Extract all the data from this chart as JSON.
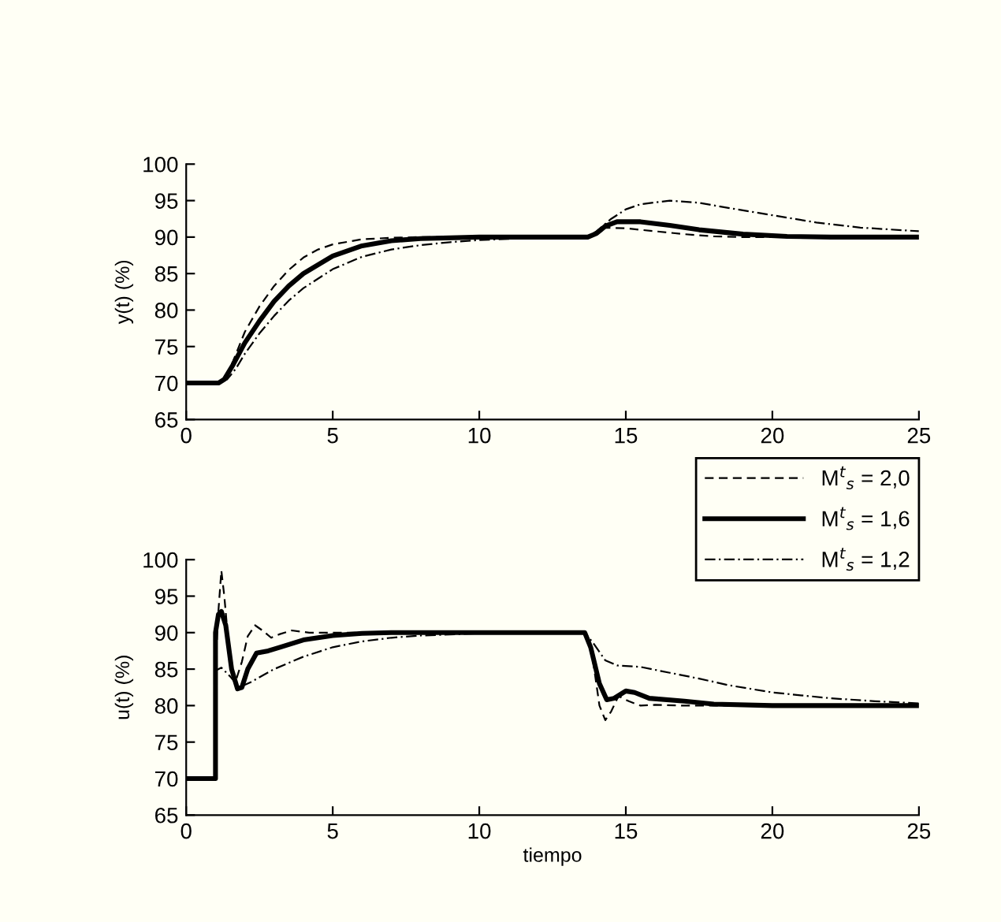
{
  "chart_data": [
    {
      "type": "line",
      "ylabel": "y(t) (%)",
      "xlim": [
        0,
        25
      ],
      "ylim": [
        65,
        100
      ],
      "xticks": [
        0,
        5,
        10,
        15,
        20,
        25
      ],
      "yticks": [
        65,
        70,
        75,
        80,
        85,
        90,
        95,
        100
      ],
      "grid": false,
      "legend": false,
      "series": [
        {
          "color": "#000000",
          "line_style": "dashed",
          "x": [
            0,
            1.1,
            1.3,
            1.6,
            2,
            2.5,
            3,
            3.5,
            4,
            4.5,
            5,
            6,
            7,
            8,
            13.7,
            14,
            14.3,
            15,
            16,
            17,
            18,
            19,
            25
          ],
          "values": [
            70,
            70,
            70.5,
            73,
            77,
            80.5,
            83.3,
            85.5,
            87.2,
            88.3,
            89,
            89.7,
            89.9,
            90,
            90,
            90.6,
            91.3,
            91.2,
            90.8,
            90.4,
            90.1,
            90,
            90
          ]
        },
        {
          "color": "#000000",
          "line_style": "solid",
          "x": [
            0,
            1.1,
            1.3,
            1.6,
            2,
            2.5,
            3,
            3.5,
            4,
            5,
            6,
            7,
            8,
            10,
            13.7,
            14,
            14.3,
            14.7,
            15.5,
            16.5,
            17.5,
            19,
            20.5,
            22,
            25
          ],
          "values": [
            70,
            70,
            70.5,
            72.5,
            75.5,
            78.5,
            81.2,
            83.3,
            85,
            87.4,
            88.8,
            89.5,
            89.8,
            90,
            90,
            90.5,
            91.5,
            92.1,
            92.1,
            91.6,
            91,
            90.4,
            90.1,
            90,
            90
          ]
        },
        {
          "color": "#000000",
          "line_style": "dashdot",
          "x": [
            0,
            1.1,
            1.4,
            1.7,
            2,
            2.5,
            3,
            3.5,
            4,
            5,
            6,
            7,
            8,
            9,
            10,
            12,
            13.7,
            14,
            14.5,
            15,
            15.5,
            16.5,
            17.5,
            18.5,
            20,
            21.5,
            23,
            25
          ],
          "values": [
            70,
            70,
            70.5,
            72,
            74,
            76.8,
            79.2,
            81.3,
            83,
            85.6,
            87.3,
            88.3,
            88.9,
            89.3,
            89.6,
            89.9,
            90,
            90.8,
            92.5,
            93.8,
            94.5,
            95,
            94.7,
            94,
            93,
            92,
            91.3,
            90.8
          ]
        }
      ]
    },
    {
      "type": "line",
      "xlabel": "tiempo",
      "ylabel": "u(t) (%)",
      "xlim": [
        0,
        25
      ],
      "ylim": [
        65,
        100
      ],
      "xticks": [
        0,
        5,
        10,
        15,
        20,
        25
      ],
      "yticks": [
        65,
        70,
        75,
        80,
        85,
        90,
        95,
        100
      ],
      "grid": false,
      "legend": "top right",
      "series": [
        {
          "name": "M$^{t}$$_{s}$ = 2,0",
          "color": "#000000",
          "line_style": "dashed",
          "x": [
            0,
            1,
            1.0,
            1.1,
            1.2,
            1.3,
            1.5,
            1.7,
            1.9,
            2.1,
            2.35,
            2.6,
            2.9,
            3.2,
            3.6,
            4.2,
            13.6,
            13.85,
            14.1,
            14.3,
            14.5,
            14.75,
            15.1,
            15.5,
            16,
            17,
            25
          ],
          "values": [
            70,
            70,
            85,
            93,
            98.5,
            95,
            86,
            83.5,
            86,
            89.5,
            91,
            90.3,
            89.3,
            89.8,
            90.3,
            90,
            90,
            87,
            80,
            78,
            79.2,
            81.3,
            80.6,
            80,
            80.1,
            80,
            80
          ]
        },
        {
          "name": "M$^{t}$$_{s}$ = 1,6",
          "color": "#000000",
          "line_style": "solid",
          "x": [
            0,
            1,
            1.0,
            1.1,
            1.2,
            1.35,
            1.55,
            1.75,
            1.9,
            2.1,
            2.4,
            2.8,
            3.2,
            4,
            5,
            6,
            7,
            13.6,
            13.8,
            14.1,
            14.35,
            14.6,
            15,
            15.3,
            15.8,
            17,
            18,
            20,
            25
          ],
          "values": [
            70,
            70,
            90,
            92.5,
            92.9,
            91,
            85,
            82.3,
            82.5,
            85,
            87.2,
            87.5,
            88,
            89,
            89.6,
            89.9,
            90,
            90,
            88,
            83,
            80.8,
            81,
            82,
            81.8,
            81,
            80.6,
            80.2,
            80,
            80
          ]
        },
        {
          "name": "M$^{t}$$_{s}$ = 1,2",
          "color": "#000000",
          "line_style": "dashdot",
          "x": [
            0,
            1,
            1.0,
            1.2,
            1.5,
            1.8,
            2.2,
            3,
            4,
            5,
            6,
            7,
            8,
            10,
            13.6,
            13.9,
            14.3,
            14.7,
            15.5,
            16.5,
            17.5,
            18.5,
            20,
            22,
            23.5,
            25
          ],
          "values": [
            70,
            70,
            84.8,
            85.2,
            84,
            82.5,
            83.2,
            85,
            86.7,
            88,
            88.8,
            89.3,
            89.6,
            89.9,
            90,
            88.5,
            86.2,
            85.5,
            85.3,
            84.5,
            83.7,
            82.8,
            81.8,
            81,
            80.6,
            80.3
          ]
        }
      ]
    }
  ]
}
